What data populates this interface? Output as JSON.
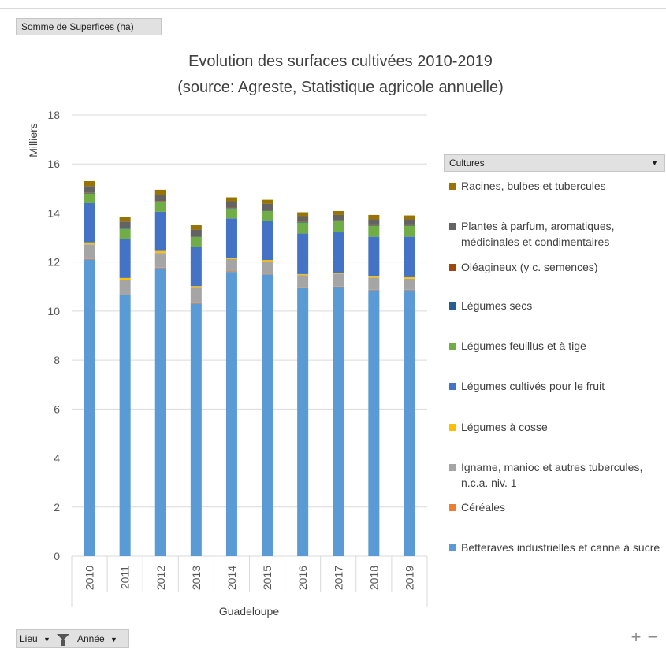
{
  "pivot": {
    "value_field": "Somme de Superfices (ha)",
    "legend_field": "Cultures",
    "row_fields": [
      "Lieu",
      "Année"
    ]
  },
  "chart_data": {
    "type": "bar",
    "stacked": true,
    "title": "Evolution des surfaces cultivées 2010-2019",
    "subtitle": "(source: Agreste, Statistique agricole annuelle)",
    "ylabel": "Milliers",
    "ylim": [
      0,
      18
    ],
    "yticks": [
      0,
      2,
      4,
      6,
      8,
      10,
      12,
      14,
      16,
      18
    ],
    "grid": true,
    "group_label": "Guadeloupe",
    "categories": [
      "2010",
      "2011",
      "2012",
      "2013",
      "2014",
      "2015",
      "2016",
      "2017",
      "2018",
      "2019"
    ],
    "legend_position": "right",
    "series": [
      {
        "name": "Betteraves industrielles et canne à sucre",
        "color": "#5b9bd5",
        "values": [
          12.1,
          10.65,
          11.75,
          10.3,
          11.6,
          11.5,
          10.95,
          11.0,
          10.85,
          10.85
        ]
      },
      {
        "name": "Céréales",
        "color": "#ed7d31",
        "values": [
          0.02,
          0.02,
          0.02,
          0.02,
          0.02,
          0.02,
          0.02,
          0.02,
          0.02,
          0.02
        ]
      },
      {
        "name": "Igname, manioc et autres tubercules, n.c.a. niv. 1",
        "color": "#a5a5a5",
        "values": [
          0.6,
          0.6,
          0.6,
          0.66,
          0.5,
          0.5,
          0.5,
          0.5,
          0.5,
          0.45
        ]
      },
      {
        "name": "Légumes à cosse",
        "color": "#ffc000",
        "values": [
          0.08,
          0.08,
          0.08,
          0.04,
          0.06,
          0.06,
          0.04,
          0.04,
          0.06,
          0.06
        ]
      },
      {
        "name": "Légumes cultivés pour le fruit",
        "color": "#4472c4",
        "values": [
          1.6,
          1.6,
          1.6,
          1.6,
          1.6,
          1.6,
          1.65,
          1.65,
          1.6,
          1.65
        ]
      },
      {
        "name": "Légumes feuillus et à tige",
        "color": "#70ad47",
        "values": [
          0.4,
          0.4,
          0.4,
          0.4,
          0.4,
          0.4,
          0.45,
          0.45,
          0.45,
          0.45
        ]
      },
      {
        "name": "Légumes secs",
        "color": "#255e91",
        "values": [
          0.02,
          0.02,
          0.02,
          0.02,
          0.02,
          0.02,
          0.02,
          0.02,
          0.02,
          0.02
        ]
      },
      {
        "name": "Oléagineux (y c. semences)",
        "color": "#9e480e",
        "values": [
          0.02,
          0.02,
          0.02,
          0.02,
          0.02,
          0.02,
          0.02,
          0.02,
          0.02,
          0.02
        ]
      },
      {
        "name": "Plantes à parfum, aromatiques, médicinales et condimentaires",
        "color": "#636363",
        "values": [
          0.26,
          0.26,
          0.26,
          0.26,
          0.26,
          0.26,
          0.22,
          0.22,
          0.22,
          0.22
        ]
      },
      {
        "name": "Racines, bulbes et tubercules",
        "color": "#997300",
        "values": [
          0.2,
          0.2,
          0.2,
          0.18,
          0.16,
          0.16,
          0.16,
          0.16,
          0.18,
          0.16
        ]
      }
    ]
  },
  "controls": {
    "filter_icon": "funnel-icon",
    "dropdown_icon": "chevron-down-icon",
    "zoom_in": "+",
    "zoom_out": "−"
  }
}
